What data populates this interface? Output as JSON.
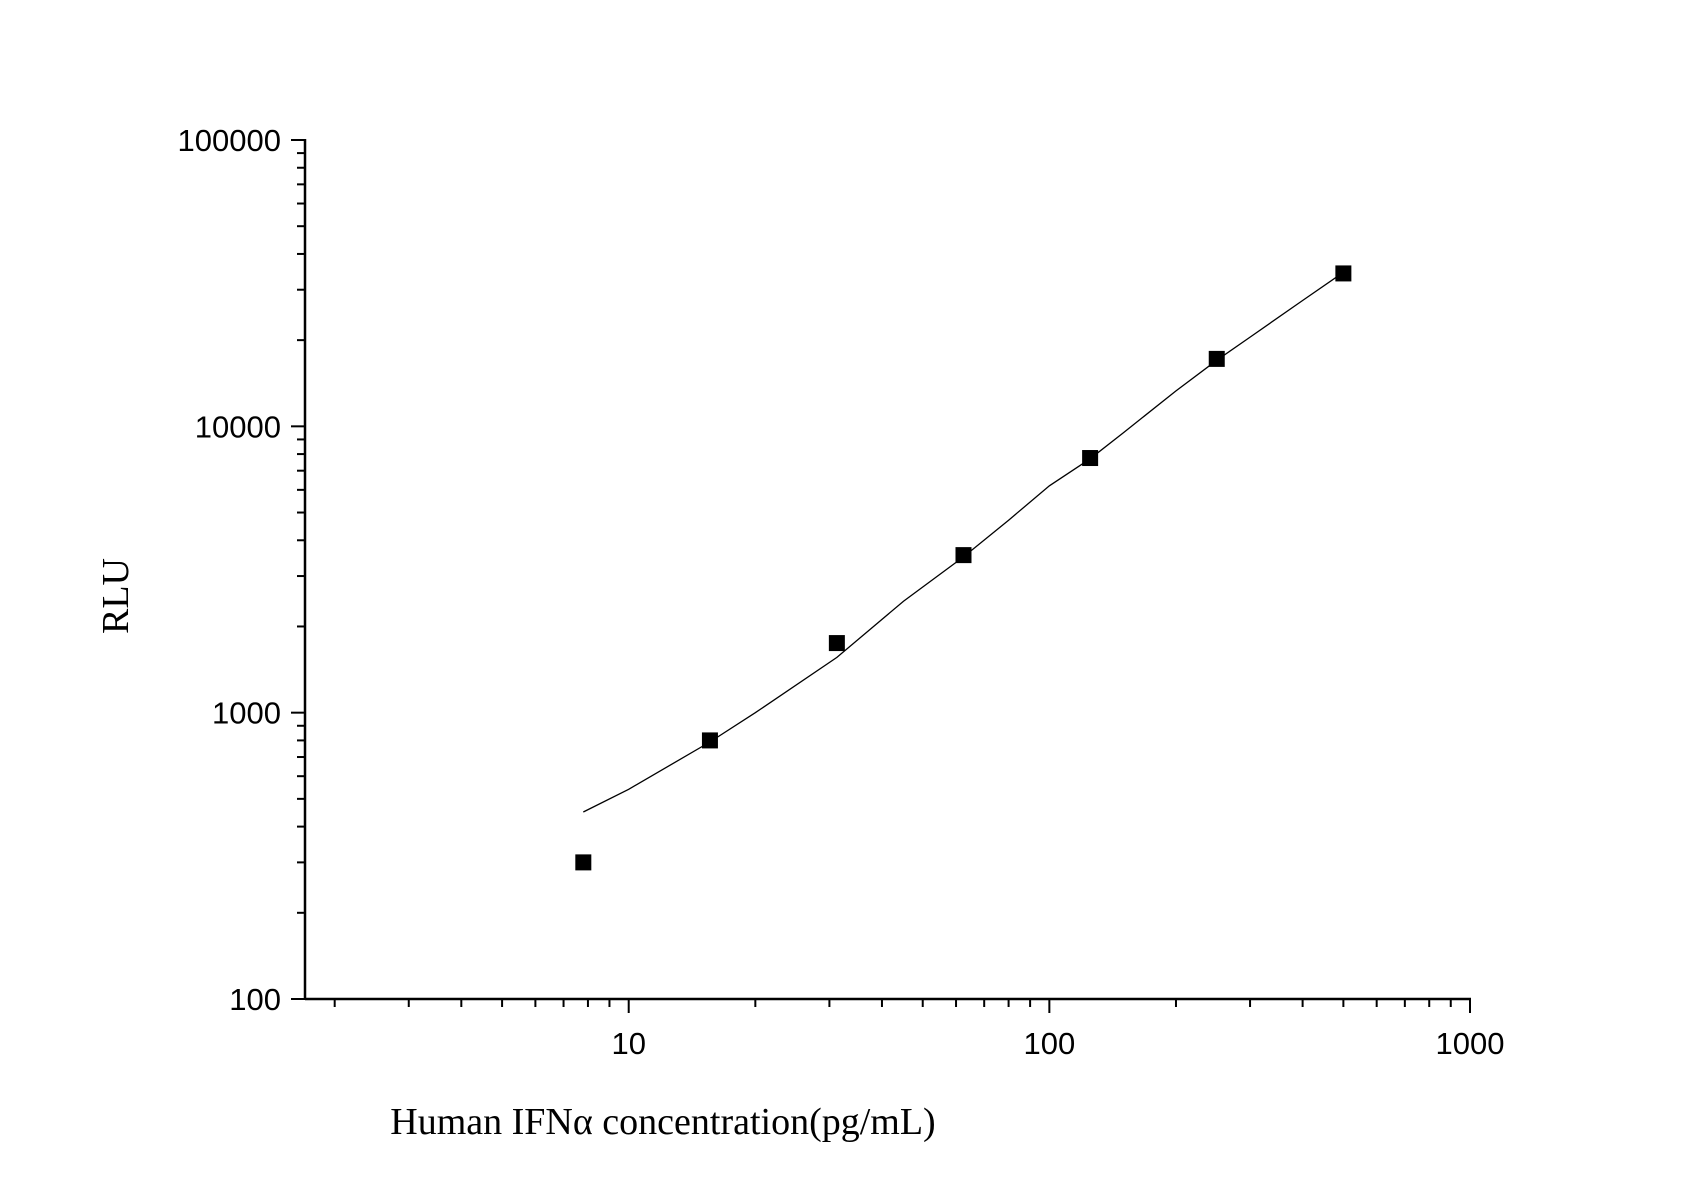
{
  "chart_data": {
    "type": "scatter",
    "xscale": "log",
    "yscale": "log",
    "xlim": [
      1.7,
      1000
    ],
    "ylim": [
      100,
      100000
    ],
    "xlabel": "Human IFNα concentration(pg/mL)",
    "ylabel": "RLU",
    "grid": false,
    "legend": "none",
    "xticks": [
      {
        "value": 10,
        "label": "10"
      },
      {
        "value": 100,
        "label": "100"
      },
      {
        "value": 1000,
        "label": "1000"
      }
    ],
    "yticks": [
      {
        "value": 100,
        "label": "100"
      },
      {
        "value": 1000,
        "label": "1000"
      },
      {
        "value": 10000,
        "label": "10000"
      },
      {
        "value": 100000,
        "label": "100000"
      }
    ],
    "series": [
      {
        "type": "scatter",
        "marker": "square",
        "color": "#000000",
        "x": [
          7.8,
          15.6,
          31.25,
          62.5,
          125,
          250,
          500
        ],
        "y": [
          300,
          800,
          1750,
          3550,
          7750,
          17200,
          34200
        ]
      },
      {
        "type": "line",
        "color": "#000000",
        "x": [
          7.8,
          10,
          15.6,
          20,
          31.25,
          45,
          62.5,
          80,
          100,
          125,
          150,
          200,
          250,
          300,
          400,
          500
        ],
        "y": [
          450,
          540,
          790,
          1000,
          1560,
          2450,
          3500,
          4700,
          6200,
          7700,
          9500,
          13300,
          17000,
          20500,
          27500,
          34500
        ]
      }
    ]
  }
}
